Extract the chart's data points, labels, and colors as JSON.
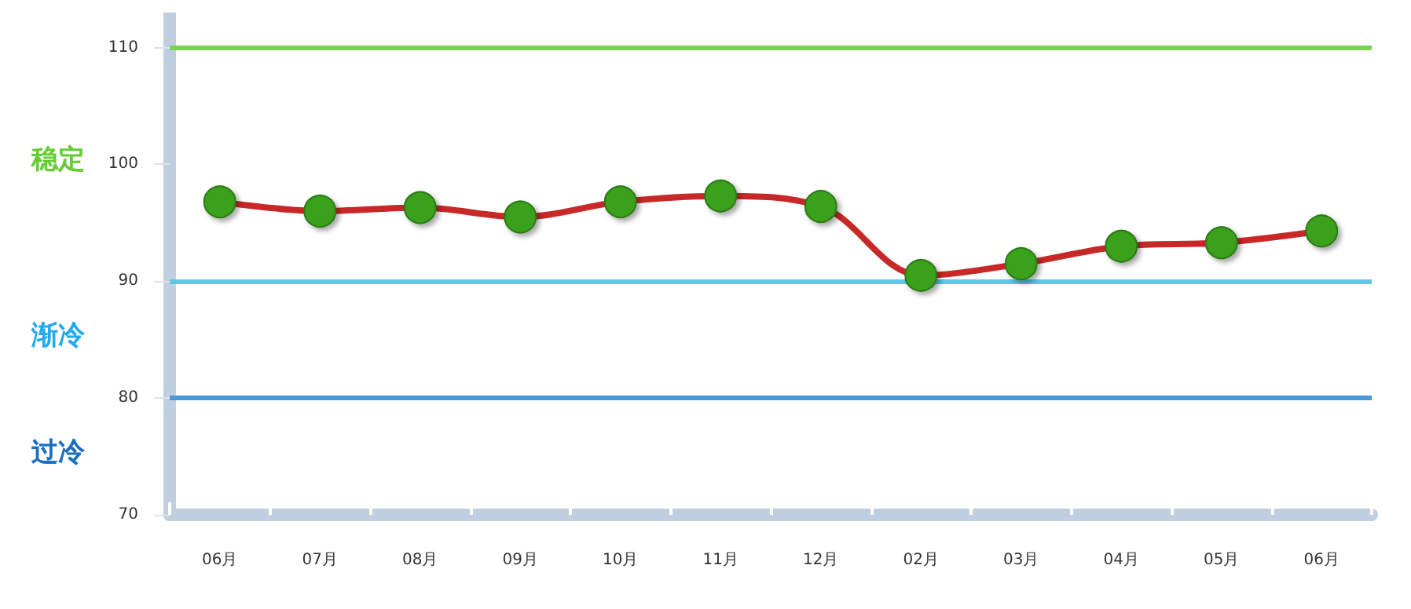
{
  "chart_data": {
    "type": "line",
    "categories": [
      "06月",
      "07月",
      "08月",
      "09月",
      "10月",
      "11月",
      "12月",
      "02月",
      "03月",
      "04月",
      "05月",
      "06月"
    ],
    "series": [
      {
        "color": "#c82828",
        "values": [
          96.8,
          96.0,
          96.3,
          95.5,
          96.8,
          97.3,
          96.4,
          90.5,
          91.5,
          93.0,
          93.3,
          94.3
        ]
      }
    ],
    "marker": "circle",
    "ylim": [
      70,
      113
    ],
    "yticks": [
      70,
      80,
      90,
      100,
      110
    ],
    "ref_lines": [
      {
        "axis": "y",
        "value": 110,
        "color": "#77d455"
      },
      {
        "axis": "y",
        "value": 90,
        "color": "#5cc8e8"
      },
      {
        "axis": "y",
        "value": 80,
        "color": "#4a98d8"
      }
    ],
    "annotations": [
      "稳定",
      "渐冷",
      "过冷"
    ],
    "grid": false
  }
}
